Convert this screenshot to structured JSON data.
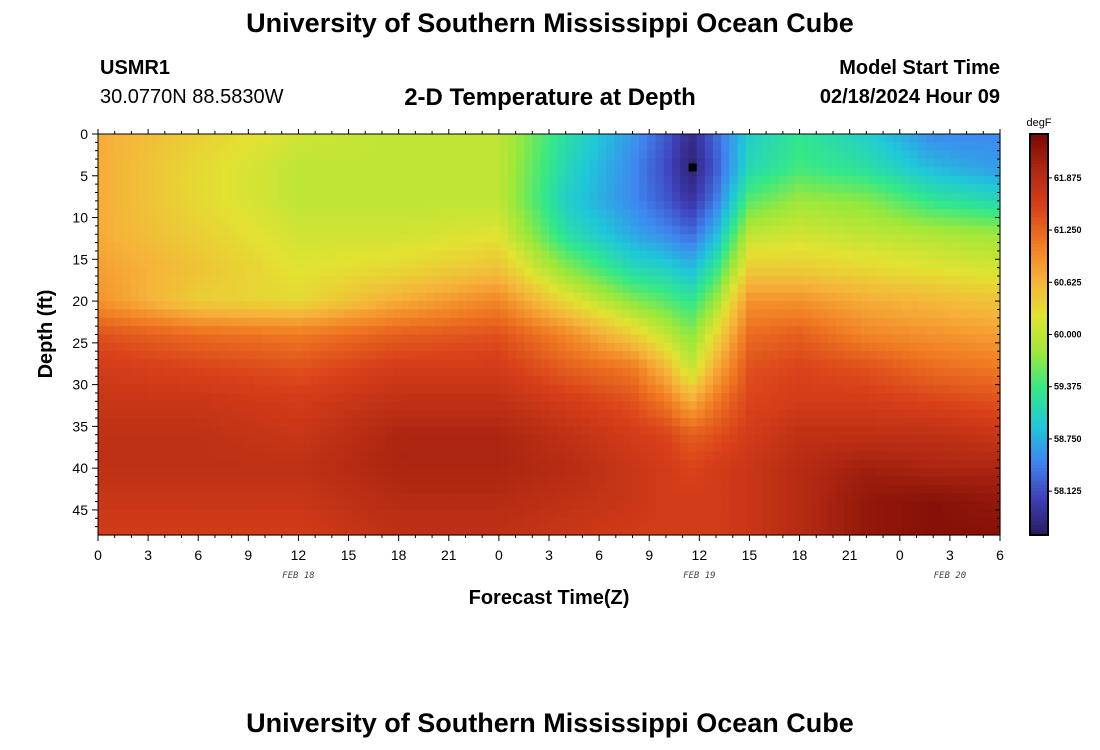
{
  "header": {
    "title": "University of Southern Mississippi Ocean Cube",
    "station": "USMR1",
    "coords": "30.0770N  88.5830W",
    "subtitle": "2-D Temperature at Depth",
    "run_label": "Model Start Time",
    "run_time": "02/18/2024 Hour 09"
  },
  "footer": {
    "title": "University of Southern Mississippi Ocean Cube"
  },
  "chart_data": {
    "type": "heatmap",
    "xlabel": "Forecast Time(Z)",
    "ylabel": "Depth (ft)",
    "x_ticks": [
      "0",
      "3",
      "6",
      "9",
      "12",
      "15",
      "18",
      "21",
      "0",
      "3",
      "6",
      "9",
      "12",
      "15",
      "18",
      "21",
      "0",
      "3",
      "6"
    ],
    "x_range_hours": [
      0,
      54
    ],
    "date_labels": [
      {
        "label": "FEB 18",
        "hour": 12
      },
      {
        "label": "FEB 19",
        "hour": 36
      },
      {
        "label": "FEB 20",
        "hour": 51
      }
    ],
    "y_ticks": [
      0,
      5,
      10,
      15,
      20,
      25,
      30,
      35,
      40,
      45
    ],
    "y_range": [
      0,
      48
    ],
    "y_inverted": true,
    "colorbar": {
      "unit": "degF",
      "range": [
        57.6,
        62.4
      ],
      "labels": [
        "61.875",
        "61.250",
        "60.625",
        "60.000",
        "59.375",
        "58.750",
        "58.125"
      ],
      "colors": [
        "#2a1a5e",
        "#3f40b8",
        "#3f86f0",
        "#1fc8d8",
        "#34e888",
        "#9ce83a",
        "#e2e232",
        "#f6b23a",
        "#f07a22",
        "#d8401a",
        "#b02812",
        "#7a0a05"
      ]
    },
    "marker": {
      "hour": 35.6,
      "depth": 4
    },
    "temperature_field": {
      "hours": [
        0,
        6,
        12,
        18,
        24,
        28,
        32,
        34,
        35.5,
        37,
        39,
        42,
        46,
        50,
        54
      ],
      "depths": [
        0,
        4,
        8,
        12,
        16,
        20,
        24,
        28,
        32,
        36,
        40,
        44,
        48
      ],
      "values_degF": [
        [
          60.7,
          60.4,
          60.1,
          60.0,
          60.0,
          59.2,
          58.6,
          58.2,
          57.8,
          58.3,
          59.0,
          59.3,
          59.0,
          58.5,
          58.5
        ],
        [
          60.7,
          60.3,
          60.0,
          60.0,
          60.0,
          59.1,
          58.5,
          58.1,
          57.7,
          58.2,
          59.1,
          59.4,
          59.2,
          58.8,
          58.6
        ],
        [
          60.7,
          60.3,
          60.0,
          60.0,
          60.0,
          59.0,
          58.5,
          58.2,
          57.9,
          58.4,
          59.5,
          59.8,
          59.7,
          59.3,
          59.1
        ],
        [
          60.7,
          60.4,
          60.1,
          60.1,
          60.2,
          59.2,
          58.7,
          58.5,
          58.3,
          58.8,
          60.0,
          60.1,
          60.0,
          59.9,
          59.8
        ],
        [
          60.8,
          60.5,
          60.2,
          60.3,
          60.5,
          59.7,
          59.1,
          59.0,
          58.8,
          59.3,
          60.4,
          60.4,
          60.3,
          60.2,
          60.1
        ],
        [
          60.9,
          60.4,
          60.3,
          60.7,
          61.0,
          60.3,
          59.7,
          59.5,
          59.3,
          59.8,
          60.9,
          60.9,
          60.7,
          60.6,
          60.5
        ],
        [
          61.4,
          61.2,
          61.1,
          61.3,
          61.4,
          61.0,
          60.4,
          60.0,
          59.7,
          60.3,
          61.2,
          61.3,
          61.0,
          60.9,
          60.8
        ],
        [
          61.6,
          61.5,
          61.4,
          61.6,
          61.6,
          61.3,
          61.1,
          60.6,
          60.0,
          60.7,
          61.4,
          61.5,
          61.4,
          61.2,
          61.1
        ],
        [
          61.7,
          61.7,
          61.6,
          61.8,
          61.8,
          61.6,
          61.4,
          61.1,
          60.7,
          61.1,
          61.5,
          61.6,
          61.6,
          61.5,
          61.4
        ],
        [
          61.8,
          61.8,
          61.7,
          62.0,
          62.0,
          61.8,
          61.6,
          61.5,
          61.3,
          61.4,
          61.6,
          61.8,
          61.8,
          61.8,
          61.7
        ],
        [
          61.8,
          61.8,
          61.8,
          62.0,
          62.0,
          61.9,
          61.7,
          61.6,
          61.5,
          61.6,
          61.7,
          61.9,
          62.1,
          62.0,
          62.0
        ],
        [
          61.7,
          61.7,
          61.7,
          61.9,
          61.9,
          61.8,
          61.7,
          61.6,
          61.6,
          61.6,
          61.7,
          61.9,
          62.2,
          62.3,
          62.2
        ],
        [
          61.6,
          61.6,
          61.6,
          61.8,
          61.8,
          61.7,
          61.6,
          61.6,
          61.6,
          61.6,
          61.7,
          61.9,
          62.2,
          62.3,
          62.3
        ]
      ]
    }
  }
}
